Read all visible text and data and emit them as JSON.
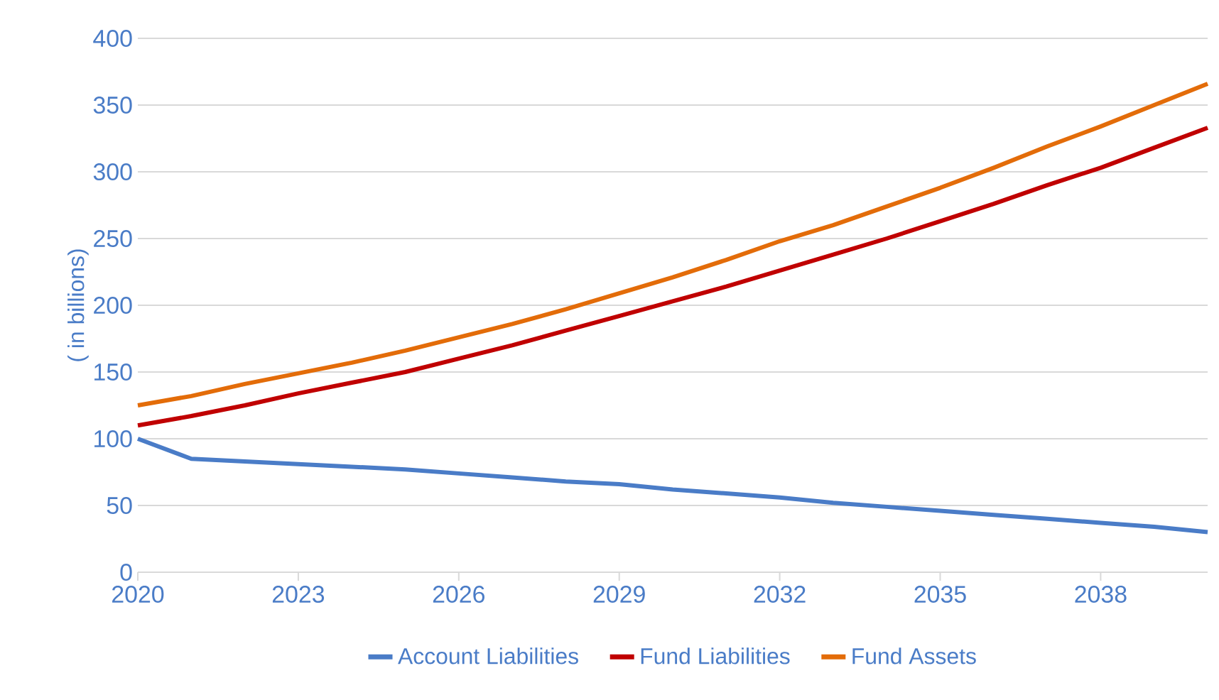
{
  "chart_data": {
    "type": "line",
    "ylabel": "( in billions)",
    "x": [
      2020,
      2021,
      2022,
      2023,
      2024,
      2025,
      2026,
      2027,
      2028,
      2029,
      2030,
      2031,
      2032,
      2033,
      2034,
      2035,
      2036,
      2037,
      2038,
      2039,
      2040
    ],
    "series": [
      {
        "name": "Account Liabilities",
        "color": "#4a7cc7",
        "values": [
          100,
          85,
          83,
          81,
          79,
          77,
          74,
          71,
          68,
          66,
          62,
          59,
          56,
          52,
          49,
          46,
          43,
          40,
          37,
          34,
          30
        ]
      },
      {
        "name": "Fund Liabilities",
        "color": "#c00000",
        "values": [
          110,
          117,
          125,
          134,
          142,
          150,
          160,
          170,
          181,
          192,
          203,
          214,
          226,
          238,
          250,
          263,
          276,
          290,
          303,
          318,
          333
        ]
      },
      {
        "name": "Fund Assets",
        "color": "#e36c09",
        "values": [
          125,
          132,
          141,
          149,
          157,
          166,
          176,
          186,
          197,
          209,
          221,
          234,
          248,
          260,
          274,
          288,
          303,
          319,
          334,
          350,
          366
        ]
      }
    ],
    "xlim": [
      2020,
      2040
    ],
    "xticks": [
      2020,
      2023,
      2026,
      2029,
      2032,
      2035,
      2038
    ],
    "ylim": [
      0,
      400
    ],
    "yticks": [
      0,
      50,
      100,
      150,
      200,
      250,
      300,
      350,
      400
    ],
    "grid": "y",
    "legend": "bottom",
    "marker": "none",
    "line_style": "solid"
  }
}
